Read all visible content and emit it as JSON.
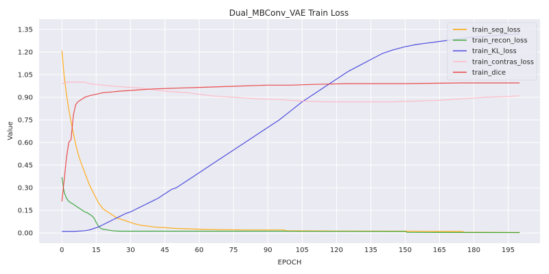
{
  "chart_data": {
    "type": "line",
    "title": "Dual_MBConv_VAE Train Loss",
    "xlabel": "EPOCH",
    "ylabel": "Value",
    "xlim": [
      -9.95,
      208.95
    ],
    "ylim": [
      -0.0675,
      1.4175
    ],
    "xticks": [
      0,
      15,
      30,
      45,
      60,
      75,
      90,
      105,
      120,
      135,
      150,
      165,
      180,
      195
    ],
    "yticks": [
      "0.00",
      "0.15",
      "0.30",
      "0.45",
      "0.60",
      "0.75",
      "0.90",
      "1.05",
      "1.20",
      "1.35"
    ],
    "grid": true,
    "background": "#eaeaf2",
    "legend_position": "top-right",
    "series": [
      {
        "name": "train_seg_loss",
        "color": "#ffa500",
        "points": [
          [
            0,
            1.21
          ],
          [
            1,
            1.04
          ],
          [
            2,
            0.92
          ],
          [
            3,
            0.82
          ],
          [
            4,
            0.74
          ],
          [
            5,
            0.66
          ],
          [
            6,
            0.59
          ],
          [
            7,
            0.53
          ],
          [
            8,
            0.48
          ],
          [
            9,
            0.44
          ],
          [
            10,
            0.4
          ],
          [
            11,
            0.36
          ],
          [
            12,
            0.32
          ],
          [
            13,
            0.29
          ],
          [
            14,
            0.26
          ],
          [
            15,
            0.23
          ],
          [
            16,
            0.2
          ],
          [
            17,
            0.18
          ],
          [
            18,
            0.16
          ],
          [
            19,
            0.15
          ],
          [
            20,
            0.14
          ],
          [
            22,
            0.12
          ],
          [
            24,
            0.1
          ],
          [
            26,
            0.09
          ],
          [
            28,
            0.08
          ],
          [
            30,
            0.07
          ],
          [
            32,
            0.06
          ],
          [
            35,
            0.05
          ],
          [
            38,
            0.045
          ],
          [
            40,
            0.04
          ],
          [
            45,
            0.035
          ],
          [
            50,
            0.03
          ],
          [
            60,
            0.025
          ],
          [
            70,
            0.022
          ],
          [
            80,
            0.02
          ],
          [
            97,
            0.02
          ],
          [
            98,
            0.015
          ],
          [
            120,
            0.013
          ],
          [
            150,
            0.012
          ],
          [
            160,
            0.011
          ],
          [
            175,
            0.01
          ],
          [
            176,
            0.005
          ],
          [
            200,
            0.003
          ]
        ]
      },
      {
        "name": "train_recon_loss",
        "color": "#2ca02c",
        "points": [
          [
            0,
            0.37
          ],
          [
            1,
            0.27
          ],
          [
            2,
            0.23
          ],
          [
            3,
            0.21
          ],
          [
            4,
            0.2
          ],
          [
            5,
            0.19
          ],
          [
            6,
            0.18
          ],
          [
            7,
            0.17
          ],
          [
            8,
            0.16
          ],
          [
            9,
            0.15
          ],
          [
            10,
            0.14
          ],
          [
            11,
            0.135
          ],
          [
            12,
            0.125
          ],
          [
            13,
            0.115
          ],
          [
            14,
            0.1
          ],
          [
            15,
            0.07
          ],
          [
            16,
            0.045
          ],
          [
            17,
            0.03
          ],
          [
            18,
            0.025
          ],
          [
            20,
            0.02
          ],
          [
            22,
            0.015
          ],
          [
            25,
            0.012
          ],
          [
            40,
            0.012
          ],
          [
            60,
            0.012
          ],
          [
            97,
            0.012
          ],
          [
            100,
            0.011
          ],
          [
            150,
            0.01
          ],
          [
            151,
            0.004
          ],
          [
            200,
            0.003
          ]
        ]
      },
      {
        "name": "train_KL_loss",
        "color": "#3b3bdb",
        "points": [
          [
            0,
            0.01
          ],
          [
            5,
            0.01
          ],
          [
            10,
            0.015
          ],
          [
            12,
            0.02
          ],
          [
            14,
            0.03
          ],
          [
            16,
            0.04
          ],
          [
            18,
            0.055
          ],
          [
            20,
            0.07
          ],
          [
            22,
            0.085
          ],
          [
            24,
            0.1
          ],
          [
            26,
            0.115
          ],
          [
            28,
            0.13
          ],
          [
            30,
            0.14
          ],
          [
            32,
            0.155
          ],
          [
            34,
            0.17
          ],
          [
            36,
            0.185
          ],
          [
            38,
            0.2
          ],
          [
            40,
            0.215
          ],
          [
            42,
            0.23
          ],
          [
            44,
            0.25
          ],
          [
            46,
            0.27
          ],
          [
            48,
            0.29
          ],
          [
            50,
            0.3
          ],
          [
            55,
            0.35
          ],
          [
            60,
            0.4
          ],
          [
            65,
            0.45
          ],
          [
            70,
            0.5
          ],
          [
            75,
            0.55
          ],
          [
            80,
            0.6
          ],
          [
            85,
            0.65
          ],
          [
            90,
            0.7
          ],
          [
            95,
            0.75
          ],
          [
            100,
            0.81
          ],
          [
            105,
            0.87
          ],
          [
            110,
            0.92
          ],
          [
            115,
            0.97
          ],
          [
            120,
            1.02
          ],
          [
            125,
            1.07
          ],
          [
            130,
            1.11
          ],
          [
            135,
            1.15
          ],
          [
            140,
            1.19
          ],
          [
            145,
            1.215
          ],
          [
            150,
            1.235
          ],
          [
            155,
            1.25
          ],
          [
            160,
            1.26
          ],
          [
            165,
            1.27
          ],
          [
            170,
            1.28
          ],
          [
            175,
            1.29
          ],
          [
            180,
            1.3
          ],
          [
            185,
            1.305
          ],
          [
            190,
            1.31
          ],
          [
            195,
            1.315
          ],
          [
            200,
            1.32
          ]
        ]
      },
      {
        "name": "train_contras_loss",
        "color": "#ffb6c1",
        "points": [
          [
            0,
            0.99
          ],
          [
            2,
            1.0
          ],
          [
            10,
            1.0
          ],
          [
            12,
            0.99
          ],
          [
            18,
            0.98
          ],
          [
            25,
            0.97
          ],
          [
            35,
            0.96
          ],
          [
            45,
            0.94
          ],
          [
            55,
            0.93
          ],
          [
            65,
            0.91
          ],
          [
            75,
            0.9
          ],
          [
            85,
            0.89
          ],
          [
            95,
            0.885
          ],
          [
            105,
            0.875
          ],
          [
            115,
            0.87
          ],
          [
            125,
            0.87
          ],
          [
            135,
            0.87
          ],
          [
            145,
            0.87
          ],
          [
            155,
            0.875
          ],
          [
            165,
            0.88
          ],
          [
            175,
            0.89
          ],
          [
            185,
            0.9
          ],
          [
            195,
            0.905
          ],
          [
            200,
            0.91
          ]
        ]
      },
      {
        "name": "train_dice",
        "color": "#e83a3a",
        "points": [
          [
            0,
            0.21
          ],
          [
            1,
            0.35
          ],
          [
            2,
            0.5
          ],
          [
            3,
            0.6
          ],
          [
            4,
            0.62
          ],
          [
            5,
            0.78
          ],
          [
            6,
            0.85
          ],
          [
            7,
            0.87
          ],
          [
            8,
            0.88
          ],
          [
            9,
            0.89
          ],
          [
            10,
            0.9
          ],
          [
            12,
            0.91
          ],
          [
            15,
            0.92
          ],
          [
            18,
            0.93
          ],
          [
            22,
            0.935
          ],
          [
            25,
            0.94
          ],
          [
            30,
            0.945
          ],
          [
            35,
            0.95
          ],
          [
            40,
            0.955
          ],
          [
            50,
            0.96
          ],
          [
            60,
            0.965
          ],
          [
            70,
            0.97
          ],
          [
            80,
            0.975
          ],
          [
            90,
            0.98
          ],
          [
            100,
            0.98
          ],
          [
            110,
            0.985
          ],
          [
            125,
            0.99
          ],
          [
            150,
            0.99
          ],
          [
            175,
            0.995
          ],
          [
            200,
            0.995
          ]
        ]
      }
    ]
  }
}
